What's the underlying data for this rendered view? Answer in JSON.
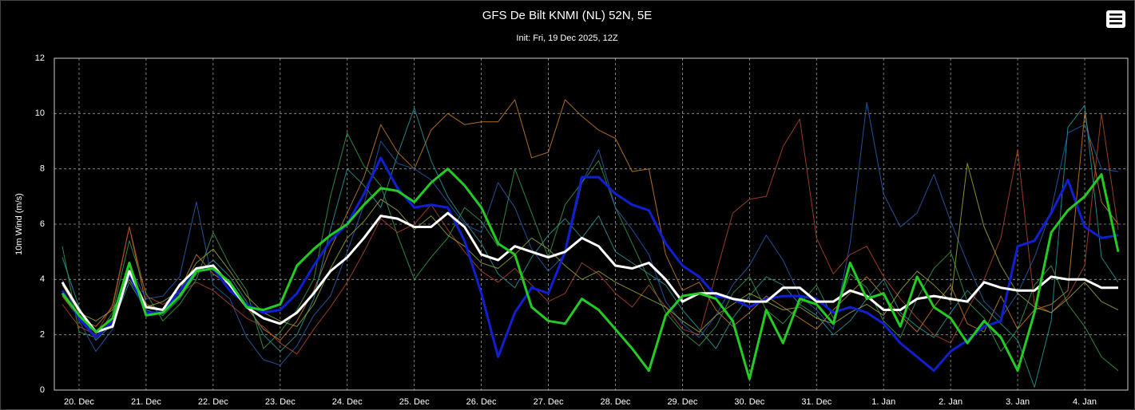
{
  "chart_data": {
    "type": "line",
    "title": "GFS De Bilt KNMI (NL) 52N, 5E",
    "subtitle": "Init: Fri, 19 Dec 2025, 12Z",
    "y_label": "10m Wind (m/s)",
    "categories": [
      null,
      "20. Dec",
      null,
      null,
      null,
      "21. Dec",
      null,
      null,
      null,
      "22. Dec",
      null,
      null,
      null,
      "23. Dec",
      null,
      null,
      null,
      "24. Dec",
      null,
      null,
      null,
      "25. Dec",
      null,
      null,
      null,
      "26. Dec",
      null,
      null,
      null,
      "27. Dec",
      null,
      null,
      null,
      "28. Dec",
      null,
      null,
      null,
      "29. Dec",
      null,
      null,
      null,
      "30. Dec",
      null,
      null,
      null,
      "31. Dec",
      null,
      null,
      null,
      "1. Jan",
      null,
      null,
      null,
      "2. Jan",
      null,
      null,
      null,
      "3. Jan",
      null,
      null,
      null,
      "4. Jan",
      null,
      null
    ],
    "ylim": [
      0,
      12
    ],
    "yticks": [
      0,
      2,
      4,
      6,
      8,
      10,
      12
    ],
    "grid": true,
    "series": [
      {
        "color": "#c8802c",
        "style": "thin",
        "values": [
          3.4,
          2.6,
          2.3,
          3.0,
          5.9,
          3.1,
          2.9,
          3.6,
          4.9,
          4.2,
          3.8,
          3.0,
          2.2,
          1.8,
          2.5,
          3.6,
          5.1,
          6.4,
          7.7,
          9.6,
          8.6,
          8.0,
          9.4,
          10.0,
          9.6,
          9.7,
          9.7,
          10.5,
          8.4,
          8.6,
          10.5,
          9.9,
          9.4,
          9.1,
          7.9,
          8.0,
          4.9,
          3.6,
          3.9,
          2.9,
          2.3,
          2.8,
          3.4,
          3.0,
          2.6,
          2.2,
          2.9,
          3.5,
          4.1,
          3.4,
          2.7,
          2.1,
          3.0,
          3.8,
          2.4,
          2.1,
          3.4,
          2.2,
          2.9,
          3.1,
          3.6,
          10.0,
          6.8,
          6.0
        ]
      },
      {
        "color": "#2a9a9a",
        "style": "thin",
        "values": [
          4.8,
          3.0,
          1.8,
          2.4,
          3.9,
          2.9,
          2.7,
          3.3,
          4.2,
          4.7,
          4.1,
          3.2,
          2.0,
          1.4,
          2.0,
          3.3,
          5.8,
          8.0,
          7.4,
          6.6,
          8.5,
          10.2,
          8.3,
          7.0,
          6.1,
          5.3,
          4.2,
          3.7,
          4.8,
          5.6,
          6.2,
          5.5,
          6.3,
          5.0,
          4.6,
          4.2,
          3.8,
          2.9,
          2.2,
          1.5,
          2.6,
          3.4,
          4.1,
          3.8,
          3.1,
          2.7,
          2.0,
          2.5,
          3.3,
          4.0,
          2.8,
          2.3,
          1.9,
          2.8,
          3.6,
          3.0,
          2.4,
          1.8,
          0.1,
          2.5,
          9.5,
          10.3,
          4.8,
          3.9
        ]
      },
      {
        "color": "#3a9a4a",
        "style": "thin",
        "values": [
          5.2,
          2.1,
          1.9,
          2.8,
          5.4,
          3.5,
          2.5,
          3.1,
          4.0,
          5.7,
          4.5,
          3.6,
          1.5,
          2.1,
          2.9,
          4.0,
          7.0,
          9.3,
          8.1,
          7.4,
          5.6,
          4.0,
          4.8,
          5.5,
          6.6,
          6.1,
          5.2,
          8.0,
          6.4,
          4.8,
          6.7,
          7.5,
          8.3,
          6.6,
          5.3,
          4.0,
          2.8,
          2.1,
          1.6,
          2.3,
          3.5,
          4.1,
          2.9,
          2.4,
          3.1,
          3.8,
          2.6,
          4.2,
          3.7,
          2.5,
          1.9,
          3.3,
          4.4,
          5.0,
          3.2,
          2.6,
          1.4,
          2.2,
          3.8,
          4.5,
          3.1,
          2.3,
          1.2,
          0.7
        ]
      },
      {
        "color": "#2a5fb0",
        "style": "thin",
        "values": [
          4.0,
          2.5,
          1.4,
          2.2,
          4.5,
          3.3,
          3.4,
          4.1,
          6.8,
          3.8,
          3.3,
          1.9,
          1.1,
          0.9,
          1.6,
          2.7,
          3.4,
          5.0,
          6.7,
          9.0,
          8.2,
          8.0,
          7.6,
          6.8,
          6.0,
          5.7,
          7.5,
          6.6,
          5.1,
          4.3,
          4.9,
          7.5,
          8.7,
          6.6,
          5.8,
          4.9,
          3.2,
          2.4,
          1.9,
          2.7,
          3.8,
          4.5,
          5.6,
          4.7,
          3.4,
          2.9,
          2.2,
          5.3,
          10.4,
          7.1,
          5.9,
          6.4,
          7.8,
          6.1,
          4.6,
          3.2,
          2.6,
          3.5,
          4.8,
          6.5,
          9.3,
          9.6,
          8.0,
          7.9
        ]
      },
      {
        "color": "#b0482a",
        "style": "thin",
        "values": [
          3.1,
          2.3,
          2.0,
          3.1,
          5.9,
          3.4,
          3.1,
          3.5,
          3.9,
          3.6,
          3.1,
          2.6,
          2.3,
          1.7,
          1.3,
          2.2,
          3.0,
          3.9,
          5.0,
          6.2,
          5.7,
          6.0,
          6.7,
          5.8,
          5.0,
          4.3,
          3.9,
          4.4,
          3.8,
          3.2,
          3.5,
          4.6,
          4.2,
          3.5,
          3.0,
          3.8,
          3.0,
          2.2,
          2.0,
          4.2,
          6.4,
          6.9,
          7.0,
          8.8,
          9.8,
          5.5,
          4.2,
          4.9,
          5.2,
          4.1,
          3.3,
          2.6,
          2.0,
          1.7,
          2.9,
          4.0,
          5.5,
          8.7,
          3.1,
          2.8,
          3.4,
          4.5,
          10.0,
          5.8
        ]
      },
      {
        "color": "#9aa83a",
        "style": "thin",
        "values": [
          3.8,
          2.8,
          2.5,
          2.9,
          4.0,
          3.0,
          3.2,
          3.6,
          4.6,
          5.1,
          4.3,
          3.4,
          2.8,
          2.5,
          2.3,
          3.1,
          4.4,
          5.5,
          6.1,
          6.9,
          6.5,
          5.8,
          6.3,
          5.6,
          5.2,
          4.6,
          4.4,
          4.9,
          5.5,
          5.1,
          4.5,
          4.0,
          4.3,
          3.9,
          3.6,
          3.3,
          3.0,
          2.5,
          2.1,
          2.7,
          3.1,
          3.5,
          3.2,
          2.9,
          3.0,
          2.6,
          2.4,
          2.8,
          3.1,
          2.7,
          3.6,
          4.3,
          3.8,
          3.2,
          8.2,
          5.9,
          4.5,
          3.5,
          3.0,
          2.8,
          3.3,
          3.9,
          3.2,
          2.9
        ]
      },
      {
        "color": "#1020d0",
        "style": "bold",
        "values": [
          3.6,
          2.6,
          1.9,
          2.5,
          4.2,
          2.8,
          2.8,
          3.6,
          4.3,
          4.4,
          3.6,
          3.1,
          2.8,
          2.9,
          3.5,
          4.5,
          5.4,
          6.0,
          7.1,
          8.4,
          7.3,
          6.6,
          6.7,
          6.6,
          5.4,
          3.5,
          1.2,
          2.8,
          3.7,
          3.5,
          5.0,
          7.7,
          7.7,
          7.1,
          6.7,
          6.5,
          5.3,
          4.5,
          4.1,
          3.4,
          3.3,
          3.0,
          3.3,
          3.4,
          3.4,
          3.3,
          2.8,
          3.0,
          2.8,
          2.4,
          1.7,
          1.2,
          0.7,
          1.4,
          1.8,
          2.3,
          2.5,
          5.2,
          5.4,
          6.4,
          7.6,
          5.9,
          5.5,
          5.6
        ]
      },
      {
        "color": "#ffffff",
        "style": "bold",
        "values": [
          3.9,
          2.9,
          2.1,
          2.3,
          4.3,
          3.0,
          2.9,
          3.8,
          4.4,
          4.5,
          3.8,
          3.0,
          2.6,
          2.4,
          2.8,
          3.5,
          4.3,
          4.8,
          5.5,
          6.3,
          6.2,
          5.9,
          5.9,
          6.4,
          5.9,
          4.9,
          4.7,
          5.2,
          5.0,
          4.8,
          5.0,
          5.5,
          5.2,
          4.5,
          4.4,
          4.6,
          4.0,
          3.2,
          3.5,
          3.5,
          3.3,
          3.2,
          3.2,
          3.7,
          3.7,
          3.2,
          3.2,
          3.6,
          3.4,
          2.9,
          2.9,
          3.3,
          3.4,
          3.3,
          3.2,
          3.9,
          3.7,
          3.6,
          3.6,
          4.1,
          4.0,
          4.0,
          3.7,
          3.7
        ]
      },
      {
        "color": "#22cc22",
        "style": "bold",
        "values": [
          3.5,
          2.7,
          2.1,
          2.6,
          4.6,
          2.7,
          2.8,
          3.4,
          4.3,
          4.4,
          3.9,
          3.0,
          2.9,
          3.1,
          4.5,
          5.1,
          5.6,
          6.0,
          6.7,
          7.3,
          7.2,
          6.8,
          7.5,
          8.0,
          7.4,
          6.6,
          5.3,
          4.9,
          3.0,
          2.5,
          2.4,
          3.3,
          2.9,
          2.2,
          1.5,
          0.7,
          2.7,
          3.4,
          3.5,
          3.3,
          2.5,
          0.4,
          2.9,
          1.7,
          3.3,
          3.1,
          2.4,
          4.6,
          3.3,
          3.5,
          2.3,
          4.1,
          3.0,
          2.6,
          1.7,
          2.5,
          1.9,
          0.7,
          2.8,
          5.7,
          6.5,
          7.0,
          7.8,
          5.0
        ]
      }
    ]
  }
}
